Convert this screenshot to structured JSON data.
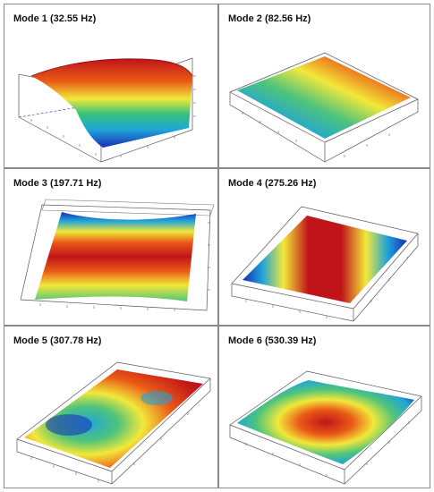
{
  "panels": [
    {
      "id": "mode1",
      "title": "Mode 1 (32.55 Hz)"
    },
    {
      "id": "mode2",
      "title": "Mode 2 (82.56 Hz)"
    },
    {
      "id": "mode3",
      "title": "Mode 3 (197.71 Hz)"
    },
    {
      "id": "mode4",
      "title": "Mode 4 (275.26 Hz)"
    },
    {
      "id": "mode5",
      "title": "Mode 5 (307.78 Hz)"
    },
    {
      "id": "mode6",
      "title": "Mode 6 (530.39 Hz)"
    }
  ],
  "colors": {
    "border": "#8a8a8a",
    "high": "#c0141a",
    "mid": "#f2e83a",
    "low": "#1a2cb5",
    "axis": "#555555"
  }
}
